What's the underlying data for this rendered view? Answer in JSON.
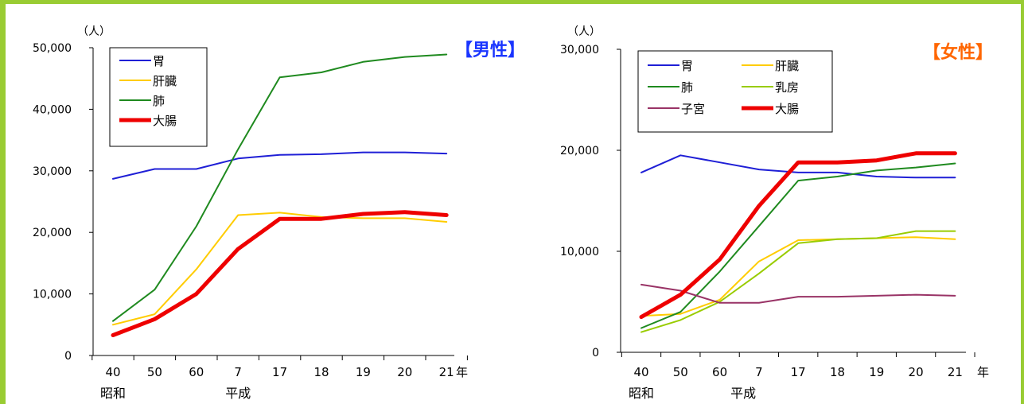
{
  "chart_data": [
    {
      "type": "line",
      "title": "【男性】",
      "title_color": "#1a35ff",
      "y_unit": "（人）",
      "x_unit": "年",
      "categories": [
        "40",
        "50",
        "60",
        "7",
        "17",
        "18",
        "19",
        "20",
        "21"
      ],
      "era_labels": [
        {
          "label": "昭和",
          "at_category": 0
        },
        {
          "label": "平成",
          "at_category": 3
        }
      ],
      "ylim": [
        0,
        50000
      ],
      "yticks": [
        "0",
        "10,000",
        "20,000",
        "30,000",
        "40,000",
        "50,000"
      ],
      "ytick_values": [
        0,
        10000,
        20000,
        30000,
        40000,
        50000
      ],
      "legend_placement": "top-left",
      "legend_columns": 1,
      "series": [
        {
          "name": "胃",
          "color": "#1f1fd6",
          "width": 2,
          "values": [
            28700,
            30300,
            30300,
            32000,
            32600,
            32700,
            33000,
            33000,
            32800
          ]
        },
        {
          "name": "肝臓",
          "color": "#ffcc00",
          "width": 2,
          "values": [
            5000,
            6700,
            14000,
            22800,
            23200,
            22500,
            22300,
            22300,
            21700
          ]
        },
        {
          "name": "肺",
          "color": "#1f8a1f",
          "width": 2,
          "values": [
            5600,
            10700,
            21000,
            33500,
            45200,
            46000,
            47700,
            48500,
            48900
          ]
        },
        {
          "name": "大腸",
          "color": "#ee0000",
          "width": 5,
          "values": [
            3300,
            5900,
            10000,
            17300,
            22200,
            22200,
            23000,
            23300,
            22800
          ]
        }
      ]
    },
    {
      "type": "line",
      "title": "【女性】",
      "title_color": "#ff6600",
      "y_unit": "（人）",
      "x_unit": "年",
      "categories": [
        "40",
        "50",
        "60",
        "7",
        "17",
        "18",
        "19",
        "20",
        "21"
      ],
      "era_labels": [
        {
          "label": "昭和",
          "at_category": 0
        },
        {
          "label": "平成",
          "at_category": 2.6
        }
      ],
      "ylim": [
        0,
        30000
      ],
      "yticks": [
        "0",
        "10,000",
        "20,000",
        "30,000"
      ],
      "ytick_values": [
        0,
        10000,
        20000,
        30000
      ],
      "legend_placement": "top-left",
      "legend_columns": 2,
      "series": [
        {
          "name": "胃",
          "color": "#1f1fd6",
          "width": 2,
          "values": [
            17800,
            19500,
            18800,
            18100,
            17800,
            17800,
            17400,
            17300,
            17300
          ]
        },
        {
          "name": "肝臓",
          "color": "#ffcc00",
          "width": 2,
          "values": [
            3600,
            3800,
            5200,
            9000,
            11100,
            11200,
            11300,
            11400,
            11200
          ]
        },
        {
          "name": "肺",
          "color": "#1f8a1f",
          "width": 2,
          "values": [
            2400,
            4000,
            8000,
            12500,
            17000,
            17400,
            18000,
            18300,
            18700
          ]
        },
        {
          "name": "乳房",
          "color": "#99cc00",
          "width": 2,
          "values": [
            2000,
            3200,
            5000,
            7800,
            10800,
            11200,
            11300,
            12000,
            12000
          ]
        },
        {
          "name": "子宮",
          "color": "#993366",
          "width": 2,
          "values": [
            6700,
            6100,
            4900,
            4900,
            5500,
            5500,
            5600,
            5700,
            5600
          ]
        },
        {
          "name": "大腸",
          "color": "#ee0000",
          "width": 5,
          "values": [
            3500,
            5700,
            9200,
            14500,
            18800,
            18800,
            19000,
            19700,
            19700
          ]
        }
      ]
    }
  ]
}
